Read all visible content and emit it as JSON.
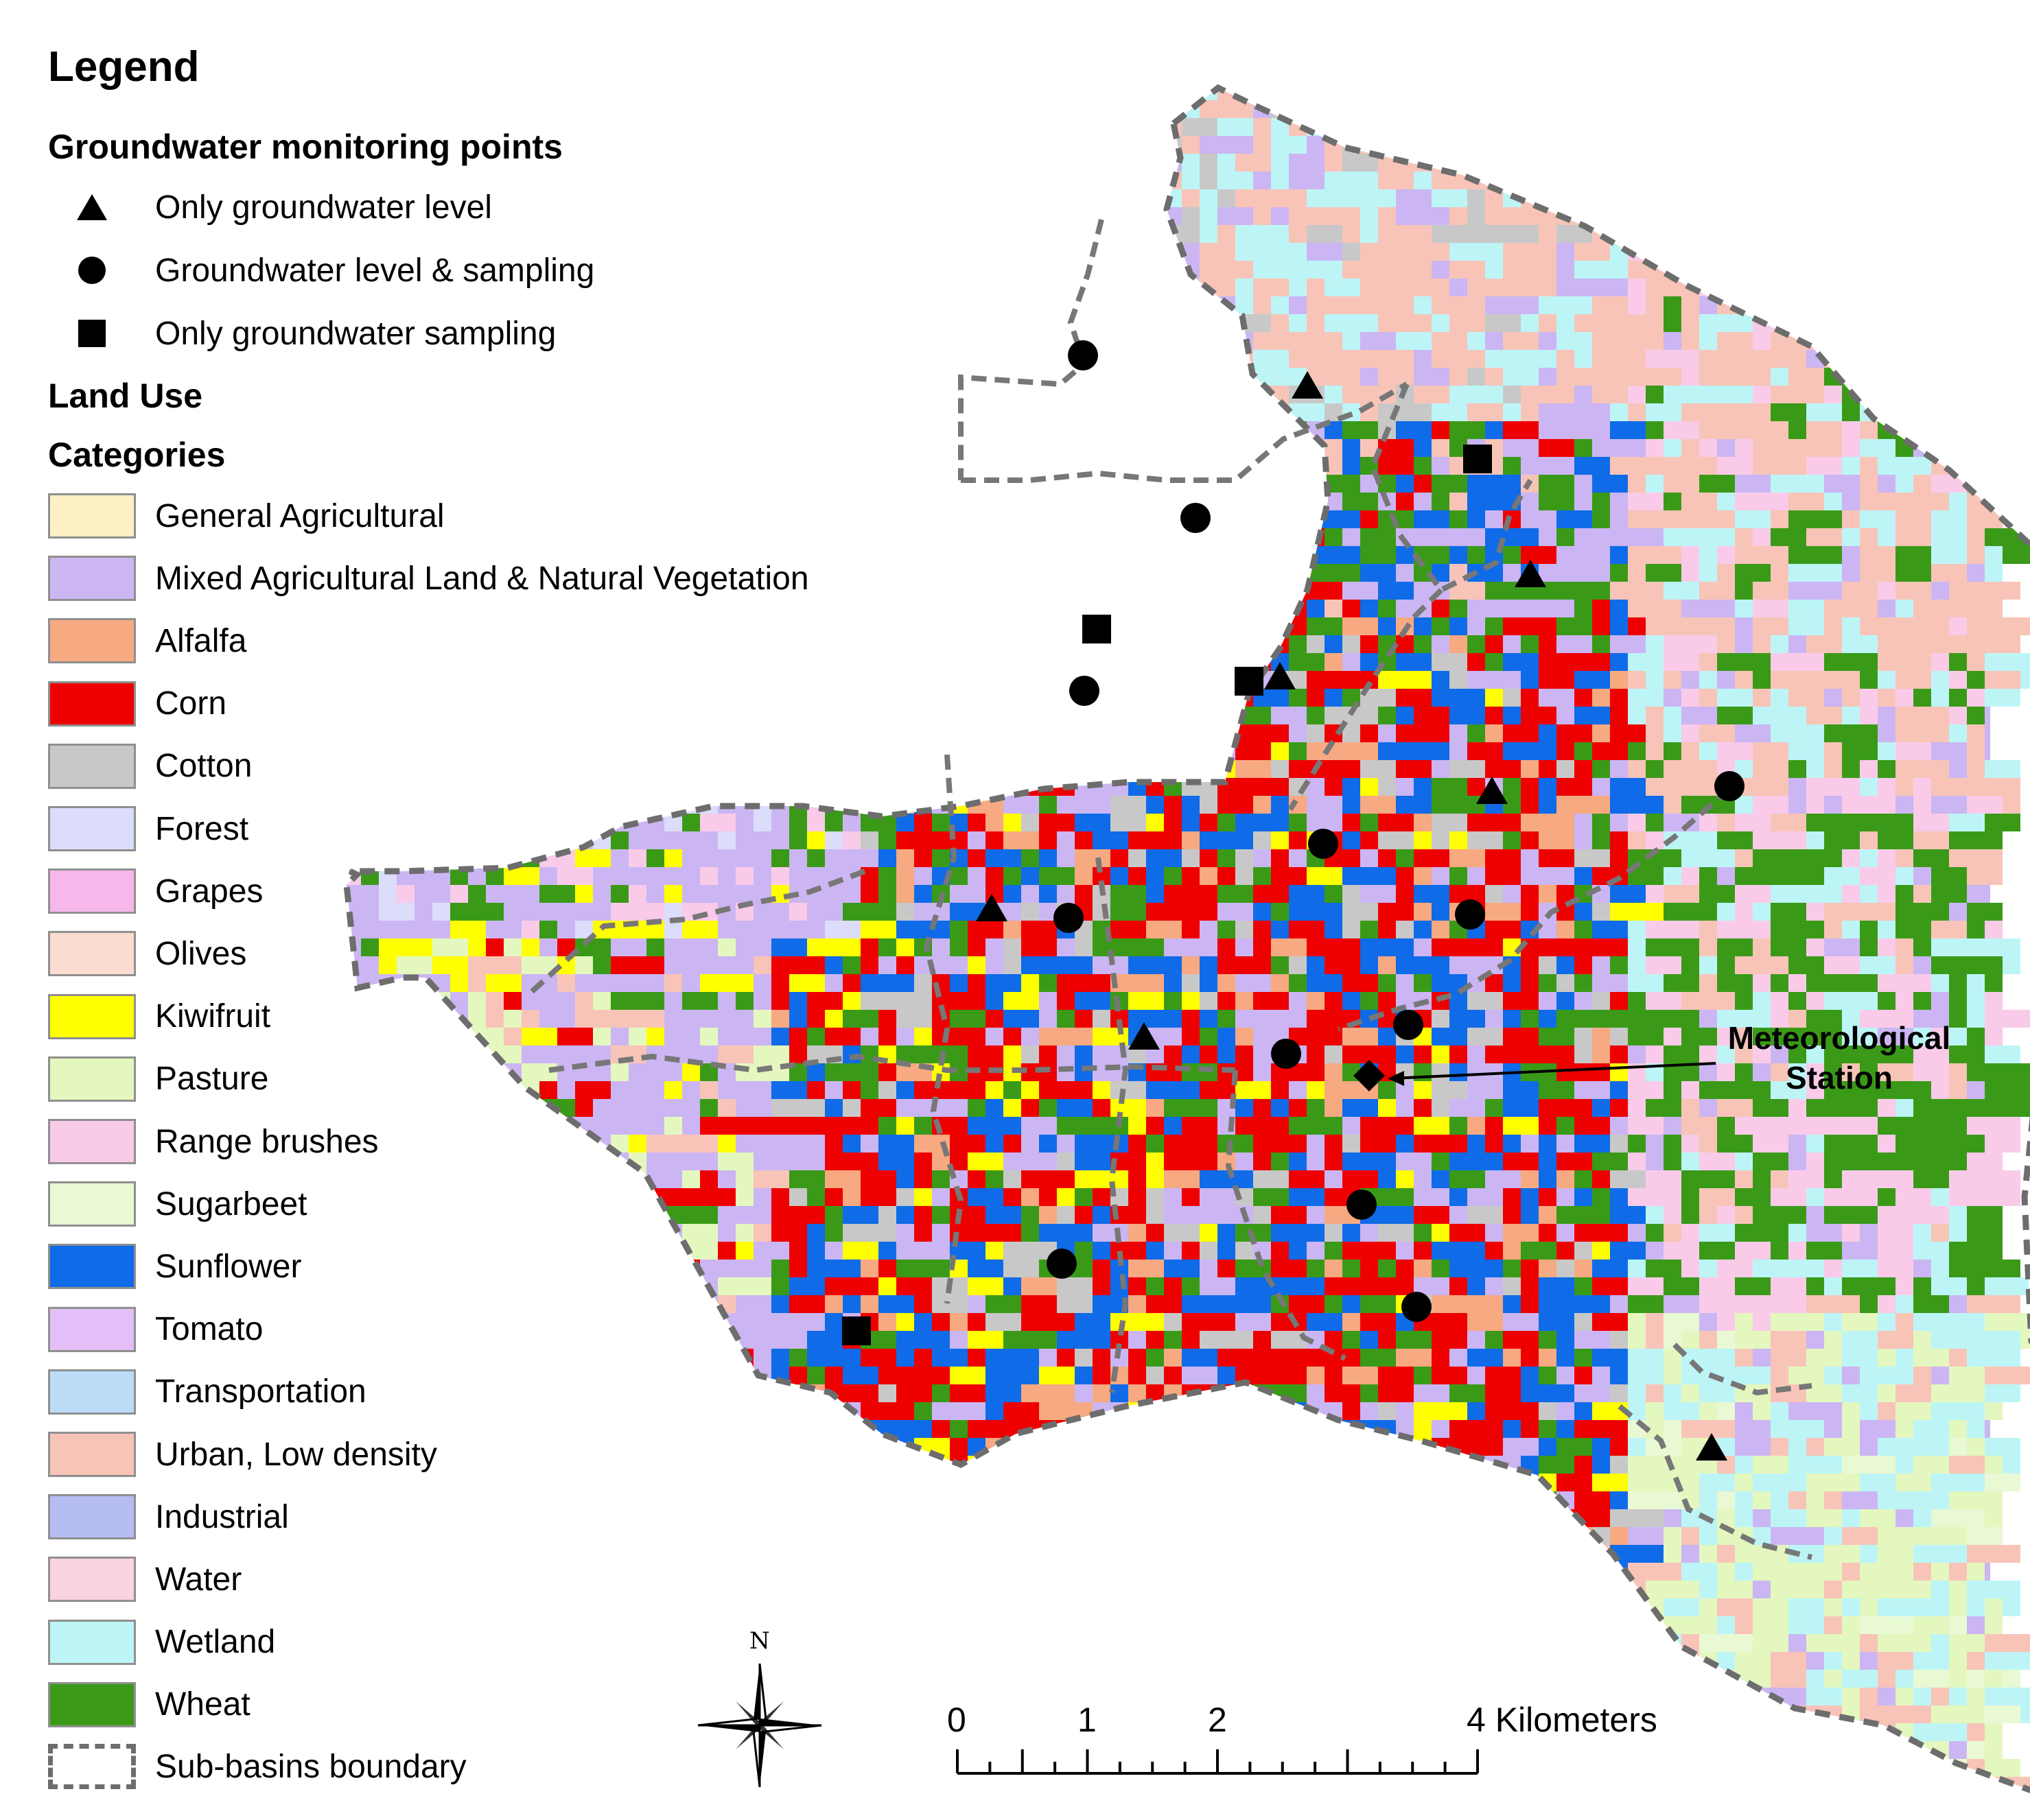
{
  "legend": {
    "title": "Legend",
    "points_heading": "Groundwater monitoring points",
    "points": [
      {
        "symbol": "triangle",
        "label": "Only groundwater level"
      },
      {
        "symbol": "circle",
        "label": "Groundwater level & sampling"
      },
      {
        "symbol": "square",
        "label": "Only groundwater sampling"
      }
    ],
    "land_use_heading": "Land Use",
    "categories_heading": "Categories",
    "categories": [
      {
        "label": "General Agricultural",
        "color": "#fdf0c4"
      },
      {
        "label": "Mixed Agricultural Land & Natural Vegetation",
        "color": "#cbb6f3"
      },
      {
        "label": "Alfalfa",
        "color": "#f7a982"
      },
      {
        "label": "Corn",
        "color": "#ee0000"
      },
      {
        "label": "Cotton",
        "color": "#c8c8c8"
      },
      {
        "label": "Forest",
        "color": "#dcdcfb"
      },
      {
        "label": "Grapes",
        "color": "#f7b7ea"
      },
      {
        "label": "Olives",
        "color": "#fbdcd0"
      },
      {
        "label": "Kiwifruit",
        "color": "#ffff00"
      },
      {
        "label": "Pasture",
        "color": "#e4f7bf"
      },
      {
        "label": "Range brushes",
        "color": "#f9cbe9"
      },
      {
        "label": "Sugarbeet",
        "color": "#e9f9d4"
      },
      {
        "label": "Sunflower",
        "color": "#0f6be8"
      },
      {
        "label": "Tomato",
        "color": "#e3bef7"
      },
      {
        "label": "Transportation",
        "color": "#bcdcf7"
      },
      {
        "label": "Urban, Low density",
        "color": "#f8c4b8"
      },
      {
        "label": "Industrial",
        "color": "#b5bcf1"
      },
      {
        "label": "Water",
        "color": "#f9d3e0"
      },
      {
        "label": "Wetland",
        "color": "#bdf5f7"
      },
      {
        "label": "Wheat",
        "color": "#3a9a18"
      }
    ],
    "boundary_label": "Sub-basins boundary"
  },
  "map": {
    "met_station_label": [
      "Meteorological",
      "Station"
    ],
    "north_label": "N",
    "scale": {
      "ticks": [
        "0",
        "1",
        "2",
        "4 Kilometers"
      ],
      "unit": "Kilometers",
      "max_km": 4
    }
  },
  "colors": {
    "boundary": "#6d6d6d",
    "symbol": "#000000"
  }
}
